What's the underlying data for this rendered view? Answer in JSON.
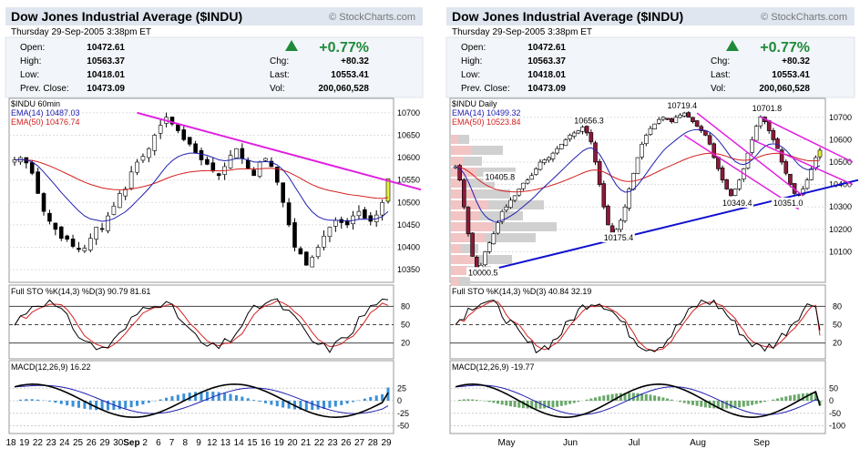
{
  "charts": [
    {
      "id": "left",
      "title": "Dow Jones Industrial Average ($INDU)",
      "brand": "© StockCharts.com",
      "date_line": "Thursday   29-Sep-2005   3:38pm ET",
      "quote": {
        "rows": [
          {
            "label": "Open:",
            "value": "10472.61"
          },
          {
            "label": "High:",
            "value": "10563.37"
          },
          {
            "label": "Low:",
            "value": "10418.01"
          },
          {
            "label": "Prev. Close:",
            "value": "10473.09"
          }
        ],
        "change_pct": "+0.77%",
        "right_rows": [
          {
            "label": "Chg:",
            "value": "+80.32"
          },
          {
            "label": "Last:",
            "value": "10553.41"
          },
          {
            "label": "Vol:",
            "value": "200,060,528"
          }
        ]
      },
      "price_legend": [
        "$INDU 60min",
        "EMA(14) 10487.03",
        "EMA(50) 10476.74"
      ],
      "price_ticks": [
        "10700",
        "10650",
        "10600",
        "10550",
        "10500",
        "10450",
        "10400",
        "10350"
      ],
      "sto_legend": "Full STO %K(14,3) %D(3)  90.79  81.61",
      "sto_ticks": [
        "80",
        "50",
        "20"
      ],
      "macd_legend": "MACD(12,26,9)  16.22",
      "macd_ticks": [
        "25",
        "0",
        "-25",
        "-50"
      ],
      "x_labels": [
        "18",
        "19",
        "22",
        "23",
        "24",
        "25",
        "26",
        "29",
        "30",
        "Sep",
        "2",
        "6",
        "7",
        "8",
        "9",
        "12",
        "13",
        "14",
        "15",
        "16",
        "19",
        "20",
        "21",
        "22",
        "23",
        "26",
        "27",
        "28",
        "29"
      ],
      "chart_data": {
        "type": "candlestick",
        "interval": "60min",
        "ylim": [
          10330,
          10720
        ],
        "close": [
          10595,
          10600,
          10588,
          10565,
          10520,
          10480,
          10458,
          10440,
          10420,
          10418,
          10402,
          10395,
          10398,
          10420,
          10445,
          10440,
          10470,
          10492,
          10520,
          10530,
          10568,
          10590,
          10603,
          10620,
          10650,
          10672,
          10690,
          10675,
          10660,
          10640,
          10630,
          10610,
          10595,
          10585,
          10570,
          10560,
          10580,
          10605,
          10620,
          10598,
          10575,
          10560,
          10590,
          10598,
          10580,
          10545,
          10500,
          10450,
          10400,
          10385,
          10360,
          10378,
          10400,
          10425,
          10445,
          10460,
          10455,
          10450,
          10470,
          10480,
          10465,
          10458,
          10472,
          10500,
          10553
        ],
        "trendline": {
          "from": 10700,
          "to": 10553
        },
        "sto_k_last": 90.79,
        "sto_d_last": 81.61,
        "macd_last": 16.22
      }
    },
    {
      "id": "right",
      "title": "Dow Jones Industrial Average ($INDU)",
      "brand": "© StockCharts.com",
      "date_line": "Thursday   29-Sep-2005   3:38pm ET",
      "quote": {
        "rows": [
          {
            "label": "Open:",
            "value": "10472.61"
          },
          {
            "label": "High:",
            "value": "10563.37"
          },
          {
            "label": "Low:",
            "value": "10418.01"
          },
          {
            "label": "Prev. Close:",
            "value": "10473.09"
          }
        ],
        "change_pct": "+0.77%",
        "right_rows": [
          {
            "label": "Chg:",
            "value": "+80.32"
          },
          {
            "label": "Last:",
            "value": "10553.41"
          },
          {
            "label": "Vol:",
            "value": "200,060,528"
          }
        ]
      },
      "price_legend": [
        "$INDU Daily",
        "EMA(14) 10499.32",
        "EMA(50) 10523.84"
      ],
      "price_ticks": [
        "10700",
        "10600",
        "10500",
        "10400",
        "10300",
        "10200",
        "10100"
      ],
      "annotations": [
        "10719.4",
        "10701.8",
        "10656.3",
        "10405.8",
        "10349.4",
        "10351.0",
        "10175.4",
        "10000.5"
      ],
      "sto_legend": "Full STO %K(14,3) %D(3)  40.84  32.19",
      "sto_ticks": [
        "80",
        "50",
        "20"
      ],
      "macd_legend": "MACD(12,26,9)  -19.77",
      "macd_ticks": [
        "50",
        "0",
        "-50",
        "-100"
      ],
      "x_labels": [
        "May",
        "Jun",
        "Jul",
        "Aug",
        "Sep"
      ],
      "chart_data": {
        "type": "candlestick",
        "interval": "daily",
        "ylim": [
          9980,
          10760
        ],
        "close": [
          10480,
          10420,
          10300,
          10180,
          10080,
          10020,
          10040,
          10100,
          10140,
          10180,
          10230,
          10280,
          10300,
          10330,
          10350,
          10380,
          10406,
          10420,
          10440,
          10470,
          10500,
          10510,
          10520,
          10540,
          10560,
          10580,
          10600,
          10620,
          10630,
          10640,
          10656,
          10630,
          10590,
          10500,
          10400,
          10300,
          10220,
          10180,
          10200,
          10240,
          10300,
          10380,
          10450,
          10520,
          10580,
          10620,
          10650,
          10670,
          10690,
          10700,
          10690,
          10680,
          10700,
          10710,
          10719,
          10700,
          10680,
          10660,
          10640,
          10620,
          10580,
          10520,
          10470,
          10420,
          10380,
          10350,
          10380,
          10420,
          10470,
          10540,
          10600,
          10660,
          10702,
          10680,
          10640,
          10600,
          10560,
          10500,
          10450,
          10400,
          10360,
          10351,
          10380,
          10420,
          10470,
          10520,
          10553
        ],
        "support_line": {
          "from": 10000,
          "to": 10420
        },
        "sto_k_last": 40.84,
        "sto_d_last": 32.19,
        "macd_last": -19.77
      }
    }
  ]
}
